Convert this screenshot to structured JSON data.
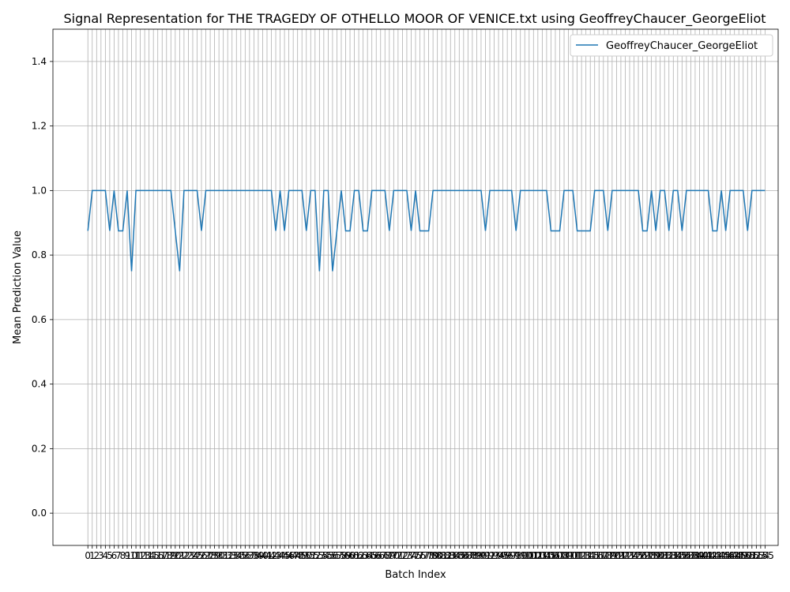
{
  "chart_data": {
    "type": "line",
    "title": "Signal Representation for THE TRAGEDY OF OTHELLO MOOR OF VENICE.txt using GeoffreyChaucer_GeorgeEliot",
    "xlabel": "Batch Index",
    "ylabel": "Mean Prediction Value",
    "xlim": [
      -8,
      158
    ],
    "ylim": [
      -0.1,
      1.5
    ],
    "yticks": [
      "0.0",
      "0.2",
      "0.4",
      "0.6",
      "0.8",
      "1.0",
      "1.2",
      "1.4"
    ],
    "grid": true,
    "legend_position": "top-right",
    "line_color": "#1f77b4",
    "series": [
      {
        "name": "GeoffreyChaucer_GeorgeEliot",
        "values": [
          0.875,
          1,
          1,
          1,
          1,
          0.875,
          1,
          0.875,
          0.875,
          1,
          0.75,
          1,
          1,
          1,
          1,
          1,
          1,
          1,
          1,
          1,
          0.875,
          0.75,
          1,
          1,
          1,
          1,
          0.875,
          1,
          1,
          1,
          1,
          1,
          1,
          1,
          1,
          1,
          1,
          1,
          1,
          1,
          1,
          1,
          1,
          0.875,
          1,
          0.875,
          1,
          1,
          1,
          1,
          0.875,
          1,
          1,
          0.75,
          1,
          1,
          0.75,
          0.875,
          1,
          0.875,
          0.875,
          1,
          1,
          0.875,
          0.875,
          1,
          1,
          1,
          1,
          0.875,
          1,
          1,
          1,
          1,
          0.875,
          1,
          0.875,
          0.875,
          0.875,
          1,
          1,
          1,
          1,
          1,
          1,
          1,
          1,
          1,
          1,
          1,
          1,
          0.875,
          1,
          1,
          1,
          1,
          1,
          1,
          0.875,
          1,
          1,
          1,
          1,
          1,
          1,
          1,
          0.875,
          0.875,
          0.875,
          1,
          1,
          1,
          0.875,
          0.875,
          0.875,
          0.875,
          1,
          1,
          1,
          0.875,
          1,
          1,
          1,
          1,
          1,
          1,
          1,
          0.875,
          0.875,
          1,
          0.875,
          1,
          1,
          0.875,
          1,
          1,
          0.875,
          1,
          1,
          1,
          1,
          1,
          1,
          0.875,
          0.875,
          1,
          0.875,
          1,
          1,
          1,
          1,
          0.875,
          1,
          1,
          1,
          1
        ]
      }
    ]
  }
}
